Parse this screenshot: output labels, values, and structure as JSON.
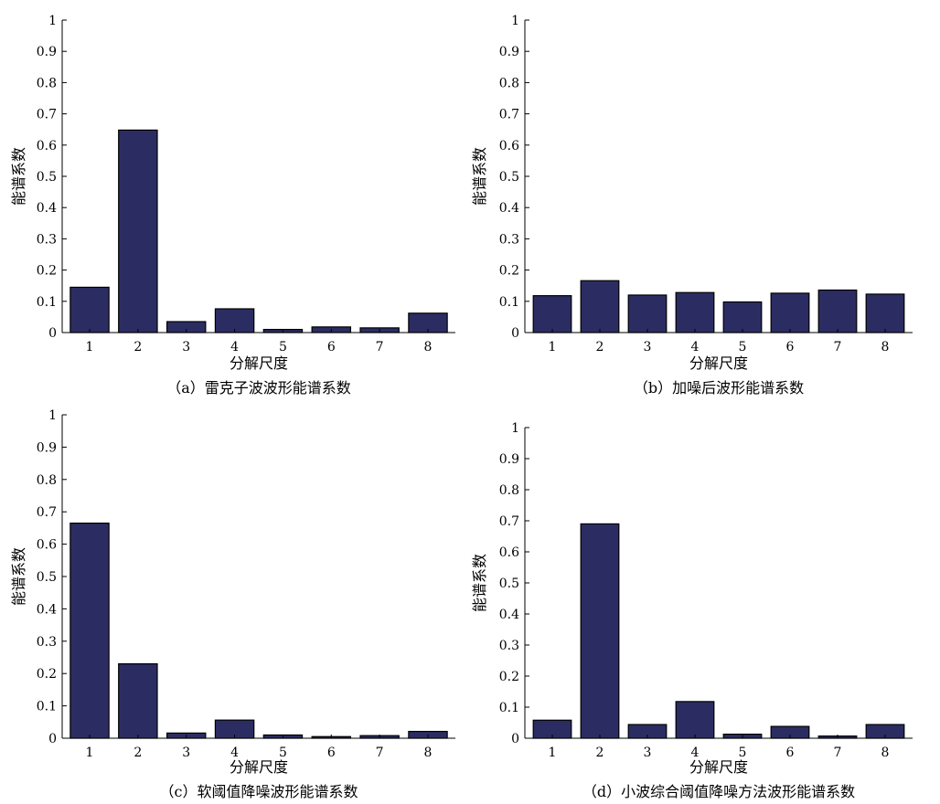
{
  "chart_data": [
    {
      "type": "bar",
      "categories": [
        "1",
        "2",
        "3",
        "4",
        "5",
        "6",
        "7",
        "8"
      ],
      "values": [
        0.145,
        0.648,
        0.035,
        0.076,
        0.01,
        0.018,
        0.015,
        0.062
      ],
      "xlabel": "分解尺度",
      "ylabel": "能谱系数",
      "caption": "（a）雷克子波波形能谱系数",
      "ylim": [
        0,
        1
      ],
      "yticks": [
        "0",
        "0.1",
        "0.2",
        "0.3",
        "0.4",
        "0.5",
        "0.6",
        "0.7",
        "0.8",
        "0.9",
        "1"
      ],
      "bar_color": "#2b2d62",
      "grid": false
    },
    {
      "type": "bar",
      "categories": [
        "1",
        "2",
        "3",
        "4",
        "5",
        "6",
        "7",
        "8"
      ],
      "values": [
        0.118,
        0.166,
        0.12,
        0.128,
        0.098,
        0.126,
        0.136,
        0.123
      ],
      "xlabel": "分解尺度",
      "ylabel": "能谱系数",
      "caption": "（b）加噪后波形能谱系数",
      "ylim": [
        0,
        1
      ],
      "yticks": [
        "0",
        "0.1",
        "0.2",
        "0.3",
        "0.4",
        "0.5",
        "0.6",
        "0.7",
        "0.8",
        "0.9",
        "1"
      ],
      "bar_color": "#2b2d62",
      "grid": false
    },
    {
      "type": "bar",
      "categories": [
        "1",
        "2",
        "3",
        "4",
        "5",
        "6",
        "7",
        "8"
      ],
      "values": [
        0.665,
        0.23,
        0.016,
        0.056,
        0.01,
        0.005,
        0.008,
        0.021
      ],
      "xlabel": "分解尺度",
      "ylabel": "能谱系数",
      "caption": "（c）软阈值降噪波形能谱系数",
      "ylim": [
        0,
        1
      ],
      "yticks": [
        "0",
        "0.1",
        "0.2",
        "0.3",
        "0.4",
        "0.5",
        "0.6",
        "0.7",
        "0.8",
        "0.9",
        "1"
      ],
      "bar_color": "#2b2d62",
      "grid": false
    },
    {
      "type": "bar",
      "categories": [
        "1",
        "2",
        "3",
        "4",
        "5",
        "6",
        "7",
        "8"
      ],
      "values": [
        0.058,
        0.69,
        0.044,
        0.118,
        0.013,
        0.038,
        0.007,
        0.044
      ],
      "xlabel": "分解尺度",
      "ylabel": "能谱系数",
      "caption": "（d）小波综合阈值降噪方法波形能谱系数",
      "ylim": [
        0,
        1
      ],
      "yticks": [
        "0",
        "0.1",
        "0.2",
        "0.3",
        "0.4",
        "0.5",
        "0.6",
        "0.7",
        "0.8",
        "0.9",
        "1"
      ],
      "bar_color": "#2b2d62",
      "grid": false
    }
  ]
}
